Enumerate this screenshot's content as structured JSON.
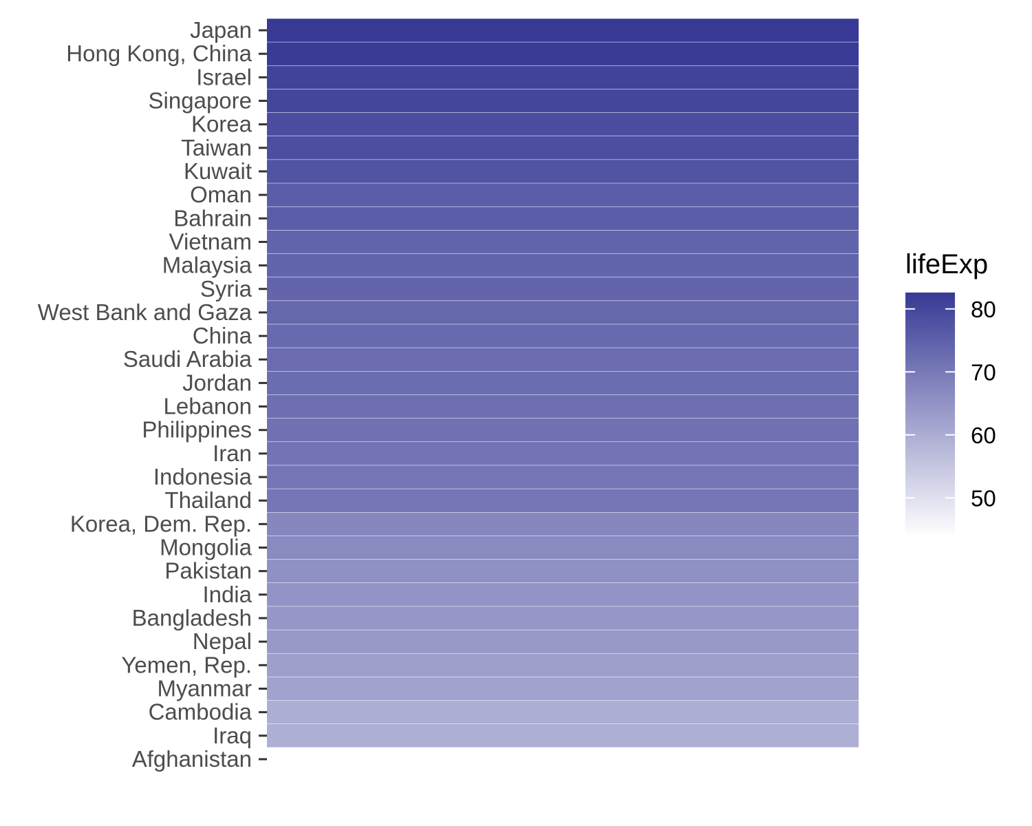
{
  "chart_data": {
    "type": "heatmap",
    "title": "",
    "xlabel": "",
    "ylabel": "",
    "categories": [
      "Japan",
      "Hong Kong, China",
      "Israel",
      "Singapore",
      "Korea",
      "Taiwan",
      "Kuwait",
      "Oman",
      "Bahrain",
      "Vietnam",
      "Malaysia",
      "Syria",
      "West Bank and Gaza",
      "China",
      "Saudi Arabia",
      "Jordan",
      "Lebanon",
      "Philippines",
      "Iran",
      "Indonesia",
      "Thailand",
      "Korea, Dem. Rep.",
      "Mongolia",
      "Pakistan",
      "India",
      "Bangladesh",
      "Nepal",
      "Yemen, Rep.",
      "Myanmar",
      "Cambodia",
      "Iraq",
      "Afghanistan"
    ],
    "values": [
      82.6,
      82.2,
      80.7,
      80.0,
      78.6,
      78.4,
      77.6,
      75.6,
      75.6,
      74.2,
      74.2,
      74.1,
      73.4,
      73.0,
      72.8,
      72.5,
      72.0,
      71.7,
      71.0,
      70.7,
      70.6,
      67.3,
      66.8,
      65.5,
      64.7,
      64.1,
      63.8,
      62.7,
      62.1,
      59.7,
      59.5,
      43.8
    ],
    "legend": {
      "title": "lifeExp",
      "position": "right",
      "ticks": [
        50,
        60,
        70,
        80
      ],
      "range": [
        43.8,
        82.6
      ],
      "low_color": "#ffffff",
      "high_color": "#373995"
    },
    "grid": false
  }
}
